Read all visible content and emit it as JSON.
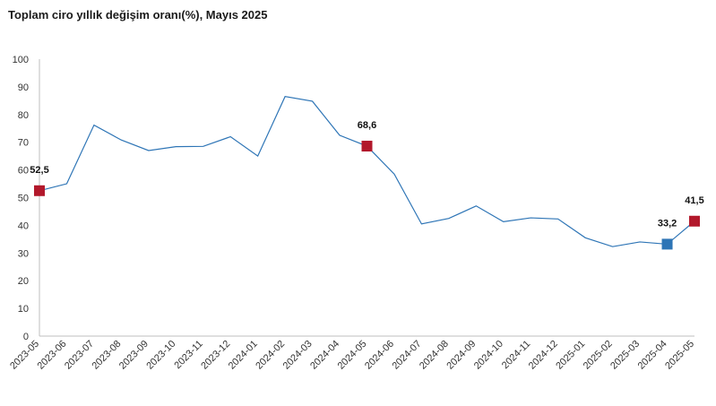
{
  "chart_data": {
    "type": "line",
    "title": "Toplam ciro yıllık değişim oranı(%), Mayıs 2025",
    "xlabel": "",
    "ylabel": "",
    "ylim": [
      0,
      100
    ],
    "yticks": [
      "0",
      "10",
      "20",
      "30",
      "40",
      "50",
      "60",
      "70",
      "80",
      "90",
      "100"
    ],
    "grid": false,
    "categories": [
      "2023-05",
      "2023-06",
      "2023-07",
      "2023-08",
      "2023-09",
      "2023-10",
      "2023-11",
      "2023-12",
      "2024-01",
      "2024-02",
      "2024-03",
      "2024-04",
      "2024-05",
      "2024-06",
      "2024-07",
      "2024-08",
      "2024-09",
      "2024-10",
      "2024-11",
      "2024-12",
      "2025-01",
      "2025-02",
      "2025-03",
      "2025-04",
      "2025-05"
    ],
    "series": [
      {
        "values": [
          52.5,
          55.0,
          76.2,
          70.8,
          67.0,
          68.4,
          68.5,
          72.0,
          65.0,
          86.5,
          84.8,
          72.5,
          68.6,
          58.5,
          40.5,
          42.5,
          47.0,
          41.3,
          42.7,
          42.3,
          35.5,
          32.3,
          34.0,
          33.2,
          41.5
        ]
      }
    ],
    "line_color": "#2e75b6",
    "highlighted_points": [
      {
        "index": 0,
        "label": "52,5",
        "color": "#b2182b"
      },
      {
        "index": 12,
        "label": "68,6",
        "color": "#b2182b"
      },
      {
        "index": 23,
        "label": "33,2",
        "color": "#2e75b6"
      },
      {
        "index": 24,
        "label": "41,5",
        "color": "#b2182b"
      }
    ]
  }
}
